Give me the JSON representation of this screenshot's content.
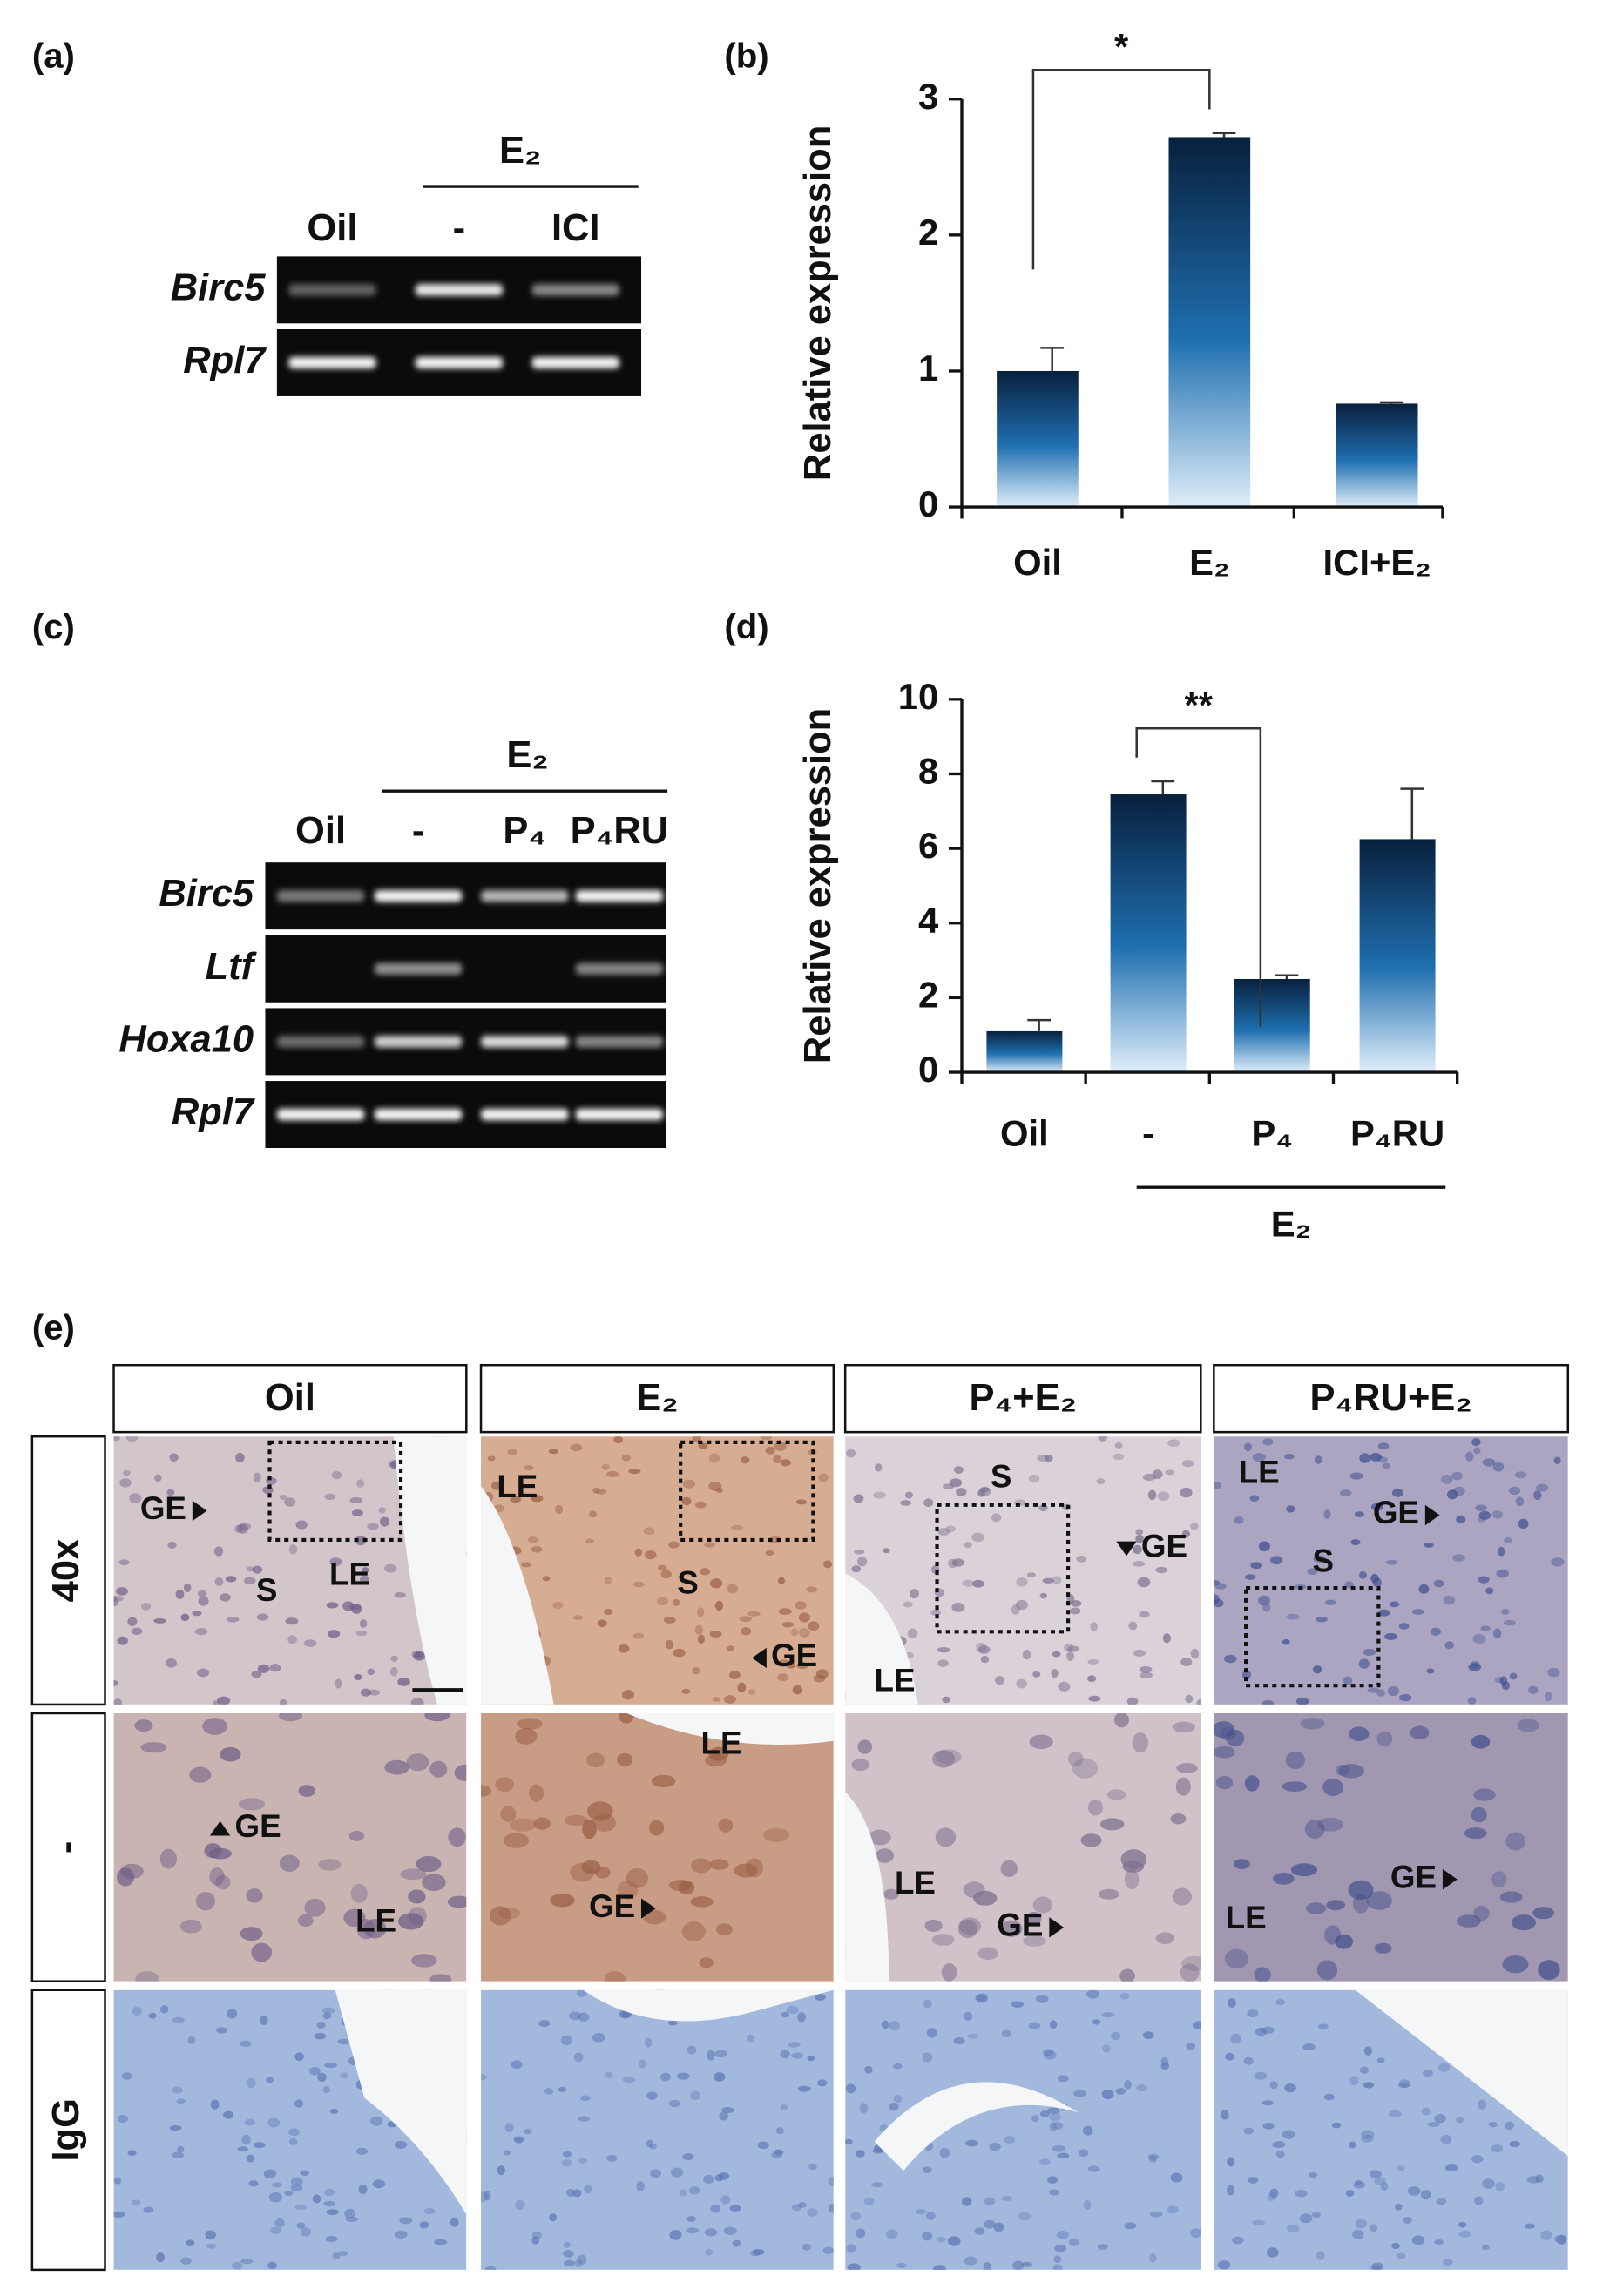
{
  "panels": {
    "a": {
      "label": "(a)",
      "group_label": "E₂",
      "lanes": [
        "Oil",
        "-",
        "ICI"
      ],
      "genes": [
        "Birc5",
        "Rpl7"
      ]
    },
    "c": {
      "label": "(c)",
      "group_label": "E₂",
      "lanes": [
        "Oil",
        "-",
        "P₄",
        "P₄RU"
      ],
      "genes": [
        "Birc5",
        "Ltf",
        "Hoxa10",
        "Rpl7"
      ]
    },
    "e": {
      "label": "(e)",
      "columns": [
        "Oil",
        "E₂",
        "P₄+E₂",
        "P₄RU+E₂"
      ],
      "rows": [
        "40x",
        "-",
        "IgG"
      ],
      "image_labels": [
        [
          [
            "GE",
            "S",
            "LE"
          ],
          [
            "LE",
            "S",
            "GE"
          ],
          [
            "S",
            "GE",
            "LE"
          ],
          [
            "LE",
            "GE",
            "S"
          ]
        ],
        [
          [
            "GE",
            "LE"
          ],
          [
            "LE",
            "GE"
          ],
          [
            "LE",
            "GE"
          ],
          [
            "GE",
            "LE"
          ]
        ]
      ]
    }
  },
  "chart_data": [
    {
      "type": "bar",
      "label": "(b)",
      "y_label": "Relative expression",
      "categories": [
        "Oil",
        "E₂",
        "ICI+E₂"
      ],
      "values": [
        1.0,
        2.72,
        0.76
      ],
      "errors": [
        0.17,
        0.03,
        0.01
      ],
      "ylim": [
        0,
        3
      ],
      "yticks": [
        0,
        1,
        2,
        3
      ],
      "significance": "*"
    },
    {
      "type": "bar",
      "label": "(d)",
      "y_label": "Relative expression",
      "categories": [
        "Oil",
        "-",
        "P₄",
        "P₄RU"
      ],
      "group_label": "E₂",
      "values": [
        1.1,
        7.45,
        2.5,
        6.25
      ],
      "errors": [
        0.3,
        0.35,
        0.1,
        1.35
      ],
      "ylim": [
        0,
        10
      ],
      "yticks": [
        0,
        2,
        4,
        6,
        8,
        10
      ],
      "significance": "**"
    }
  ]
}
